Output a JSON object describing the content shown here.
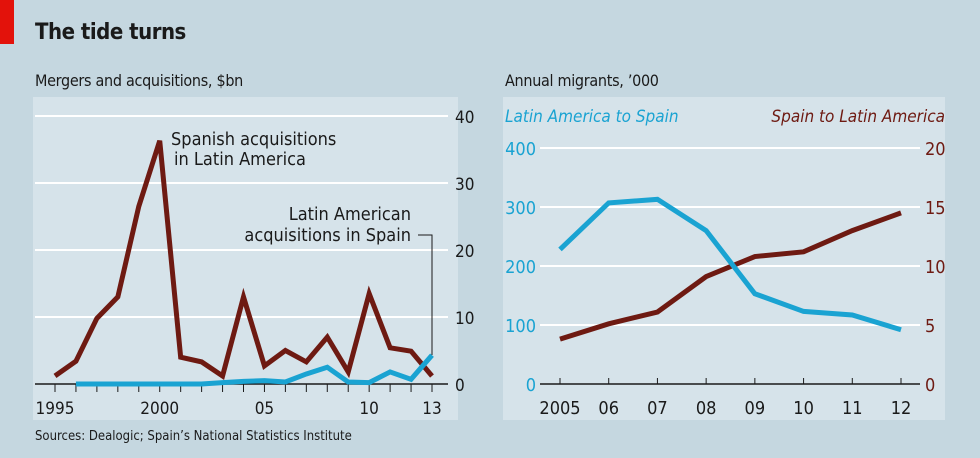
{
  "title": "The tide turns",
  "source": "Sources: Dealogic; Spain’s National Statistics Institute",
  "colors": {
    "brown": "#6e1a12",
    "blue": "#1aa3d2",
    "panel": "#d6e3ea",
    "background": "#c5d7e0",
    "accent_red": "#e3120b"
  },
  "chart_data": [
    {
      "type": "line",
      "title": "Mergers and acquisitions, $bn",
      "x": [
        1995,
        1996,
        1997,
        1998,
        1999,
        2000,
        2001,
        2002,
        2003,
        2004,
        2005,
        2006,
        2007,
        2008,
        2009,
        2010,
        2011,
        2012,
        2013
      ],
      "x_tick_labels": [
        {
          "x": 1995,
          "label": "1995"
        },
        {
          "x": 2000,
          "label": "2000"
        },
        {
          "x": 2005,
          "label": "05"
        },
        {
          "x": 2010,
          "label": "10"
        },
        {
          "x": 2013,
          "label": "13"
        }
      ],
      "ylim": [
        0,
        40
      ],
      "y_ticks": [
        "0",
        "10",
        "20",
        "30",
        "40"
      ],
      "y_axis_side": "right",
      "grid": true,
      "series": [
        {
          "name": "Spanish acquisitions in Latin America",
          "label_lines": [
            "Spanish acquisitions",
            "in Latin America"
          ],
          "color": "#6e1a12",
          "values": [
            1.2,
            3.4,
            9.8,
            13,
            26.5,
            36.3,
            4,
            3.3,
            1.2,
            13,
            2.7,
            5,
            3.3,
            7,
            1.8,
            13.5,
            5.4,
            4.9,
            1.2
          ]
        },
        {
          "name": "Latin American acquisitions in Spain",
          "label_lines": [
            "Latin American",
            "acquisitions in Spain"
          ],
          "color": "#1aa3d2",
          "values": [
            null,
            0,
            0,
            0,
            0,
            0,
            0,
            0,
            0.2,
            0.4,
            0.5,
            0.3,
            1.5,
            2.5,
            0.3,
            0.2,
            1.8,
            0.7,
            4.3
          ]
        }
      ]
    },
    {
      "type": "line",
      "title": "Annual migrants, ’000",
      "x": [
        "2005",
        "06",
        "07",
        "08",
        "09",
        "10",
        "11",
        "12"
      ],
      "grid": true,
      "series": [
        {
          "name": "Latin America to Spain",
          "color": "#1aa3d2",
          "axis": "left",
          "ylim": [
            0,
            400
          ],
          "y_ticks": [
            "0",
            "100",
            "200",
            "300",
            "400"
          ],
          "values": [
            228,
            307,
            313,
            260,
            153,
            123,
            117,
            92
          ]
        },
        {
          "name": "Spain to Latin America",
          "color": "#6e1a12",
          "axis": "right",
          "ylim": [
            0,
            20
          ],
          "y_ticks": [
            "0",
            "5",
            "10",
            "15",
            "20"
          ],
          "values": [
            3.8,
            5.1,
            6.1,
            9.1,
            10.8,
            11.2,
            13,
            14.5
          ]
        }
      ]
    }
  ]
}
